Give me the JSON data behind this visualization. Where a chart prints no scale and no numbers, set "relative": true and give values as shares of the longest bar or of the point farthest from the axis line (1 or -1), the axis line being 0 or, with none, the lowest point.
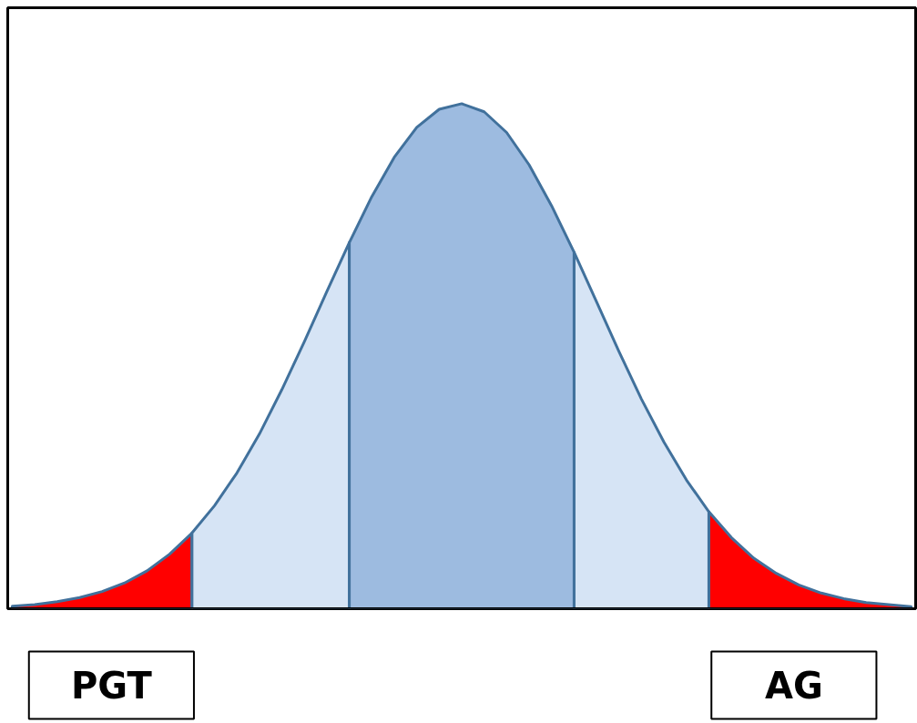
{
  "chart_data": {
    "type": "area",
    "relative": true,
    "categories": [
      null,
      null,
      null,
      null,
      null,
      null,
      null,
      null,
      null,
      null,
      null,
      null,
      null,
      null,
      null,
      null,
      null,
      null,
      null,
      null,
      null,
      null,
      null,
      null,
      null,
      null,
      null,
      null,
      null,
      null,
      null,
      null,
      null,
      null,
      null,
      null,
      null,
      null,
      null,
      null,
      null
    ],
    "series": [
      {
        "color": "#ff0000",
        "values": [
          0.005,
          0.008,
          0.014,
          0.022,
          0.034,
          0.051,
          0.075,
          0.108,
          0.15,
          null,
          null,
          null,
          null,
          null,
          null,
          null,
          null,
          null,
          null,
          null,
          null,
          null,
          null,
          null,
          null,
          null,
          null,
          null,
          null,
          null,
          null,
          null,
          null,
          null,
          null,
          null,
          null,
          null,
          null,
          null,
          null
        ]
      },
      {
        "color": "#d6e4f5",
        "values": [
          null,
          null,
          null,
          null,
          null,
          null,
          null,
          null,
          0.15,
          0.204,
          0.269,
          0.346,
          0.434,
          0.529,
          0.628,
          0.725,
          null,
          null,
          null,
          null,
          null,
          null,
          null,
          null,
          null,
          null,
          null,
          null,
          null,
          null,
          null,
          null,
          null,
          null,
          null,
          null,
          null,
          null,
          null,
          null,
          null
        ]
      },
      {
        "color": "#d6e4f5",
        "values": [
          null,
          null,
          null,
          null,
          null,
          null,
          null,
          null,
          null,
          null,
          null,
          null,
          null,
          null,
          null,
          null,
          null,
          null,
          null,
          null,
          null,
          null,
          null,
          null,
          null,
          0.706,
          0.608,
          0.509,
          0.415,
          0.33,
          0.255,
          0.192,
          null,
          null,
          null,
          null,
          null,
          null,
          null,
          null,
          null
        ]
      },
      {
        "color": "#ff0000",
        "values": [
          null,
          null,
          null,
          null,
          null,
          null,
          null,
          null,
          null,
          null,
          null,
          null,
          null,
          null,
          null,
          null,
          null,
          null,
          null,
          null,
          null,
          null,
          null,
          null,
          null,
          null,
          null,
          null,
          null,
          null,
          null,
          0.192,
          0.141,
          0.1,
          0.07,
          0.047,
          0.031,
          0.02,
          0.012,
          0.008,
          0.004
        ]
      },
      {
        "color": "#9dbbe0",
        "values": [
          null,
          null,
          null,
          null,
          null,
          null,
          null,
          null,
          null,
          null,
          null,
          null,
          null,
          null,
          null,
          0.725,
          0.816,
          0.894,
          0.953,
          0.989,
          1.0,
          0.984,
          0.943,
          0.879,
          0.798,
          0.706,
          null,
          null,
          null,
          null,
          null,
          null,
          null,
          null,
          null,
          null,
          null,
          null,
          null,
          null,
          null
        ]
      }
    ],
    "annotations": [
      "PGT",
      "AG"
    ]
  }
}
